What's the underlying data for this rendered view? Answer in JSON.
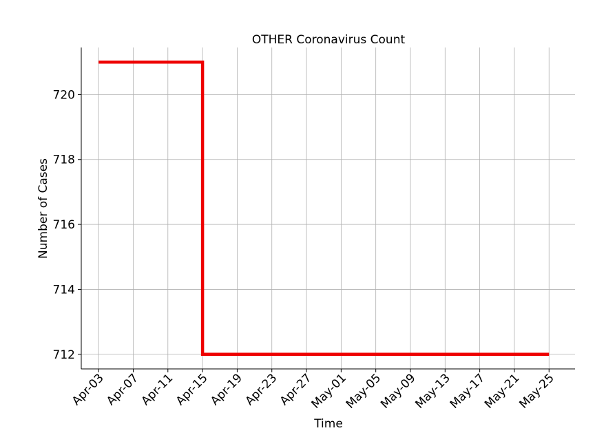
{
  "chart_data": {
    "type": "line",
    "title": "OTHER Coronavirus Count",
    "xlabel": "Time",
    "ylabel": "Number of Cases",
    "x_tick_labels": [
      "Apr-03",
      "Apr-07",
      "Apr-11",
      "Apr-15",
      "Apr-19",
      "Apr-23",
      "Apr-27",
      "May-01",
      "May-05",
      "May-09",
      "May-13",
      "May-17",
      "May-21",
      "May-25"
    ],
    "y_ticks": [
      712,
      714,
      716,
      718,
      720
    ],
    "ylim": [
      711.55,
      721.45
    ],
    "xlim": [
      "2020-04-01",
      "2020-05-28"
    ],
    "grid": true,
    "series": [
      {
        "color": "#ee0000",
        "step": true,
        "points": [
          {
            "x": "2020-04-03",
            "y": 721
          },
          {
            "x": "2020-04-15",
            "y": 721
          },
          {
            "x": "2020-04-15",
            "y": 712
          },
          {
            "x": "2020-05-25",
            "y": 712
          }
        ]
      }
    ]
  }
}
